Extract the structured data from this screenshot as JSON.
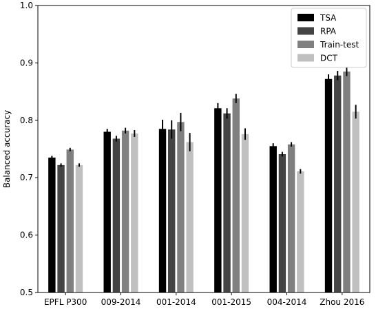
{
  "chart_data": {
    "type": "bar",
    "ylabel": "Balanced accuracy",
    "xlabel": "",
    "ylim": [
      0.5,
      1.0
    ],
    "yticks": [
      "0.5",
      "0.6",
      "0.7",
      "0.8",
      "0.9",
      "1.0"
    ],
    "grid": false,
    "legend_position": "top-right",
    "categories": [
      "EPFL P300",
      "009-2014",
      "001-2014",
      "001-2015",
      "004-2014",
      "Zhou 2016"
    ],
    "series": [
      {
        "name": "TSA",
        "color": "#000000",
        "values": [
          0.735,
          0.78,
          0.785,
          0.821,
          0.755,
          0.872
        ],
        "errors": [
          0.003,
          0.005,
          0.016,
          0.009,
          0.005,
          0.008
        ]
      },
      {
        "name": "RPA",
        "color": "#444444",
        "values": [
          0.722,
          0.768,
          0.784,
          0.812,
          0.741,
          0.878
        ],
        "errors": [
          0.003,
          0.005,
          0.016,
          0.009,
          0.004,
          0.008
        ]
      },
      {
        "name": "Train-test",
        "color": "#808080",
        "values": [
          0.749,
          0.782,
          0.797,
          0.838,
          0.758,
          0.885
        ],
        "errors": [
          0.003,
          0.005,
          0.016,
          0.008,
          0.004,
          0.008
        ]
      },
      {
        "name": "DCT",
        "color": "#c0c0c0",
        "values": [
          0.722,
          0.777,
          0.762,
          0.776,
          0.711,
          0.815
        ],
        "errors": [
          0.003,
          0.006,
          0.016,
          0.01,
          0.004,
          0.012
        ]
      }
    ]
  }
}
